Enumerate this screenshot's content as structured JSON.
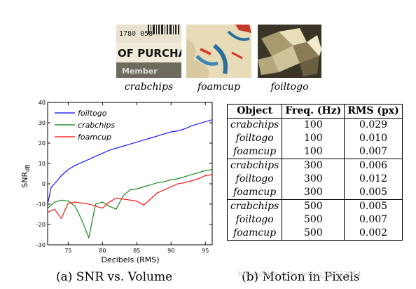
{
  "photos": [
    {
      "label": "crabchips",
      "printed_text": [
        "1780 058",
        "OF PURCHAS",
        "Member"
      ]
    },
    {
      "label": "foamcup"
    },
    {
      "label": "foiltogo"
    }
  ],
  "chart_data": {
    "type": "line",
    "xlabel": "Decibels (RMS)",
    "ylabel": "SNR",
    "ylabel_sub": "dB",
    "xlim": [
      72,
      96
    ],
    "ylim": [
      -30,
      40
    ],
    "xticks": [
      "75",
      "80",
      "85",
      "90",
      "95"
    ],
    "yticks": [
      "40",
      "30",
      "20",
      "10",
      "0",
      "-10",
      "-20",
      "-30"
    ],
    "legend_position": "top-left",
    "series": [
      {
        "name": "foiltogo",
        "color": "#0000ff",
        "x": [
          72,
          72.5,
          73,
          73.5,
          74,
          74.5,
          75,
          76,
          77,
          78,
          79,
          80,
          81,
          82,
          83,
          84,
          85,
          86,
          87,
          88,
          89,
          90,
          91,
          92,
          93,
          94,
          95,
          96
        ],
        "y": [
          -10,
          -2,
          0,
          2,
          4,
          5.5,
          7,
          9,
          10.5,
          12,
          13.5,
          15,
          16.5,
          17.5,
          18.5,
          19.5,
          20.5,
          21.5,
          22.5,
          23.5,
          24.5,
          25.5,
          26,
          27,
          28.5,
          29.5,
          30.5,
          31.5
        ]
      },
      {
        "name": "crabchips",
        "color": "#008000",
        "x": [
          72,
          73,
          74,
          75,
          76,
          77,
          78,
          79,
          80,
          81,
          82,
          83,
          84,
          85,
          86,
          87,
          88,
          89,
          90,
          91,
          92,
          93,
          94,
          95,
          96
        ],
        "y": [
          -12,
          -9,
          -8,
          -8.5,
          -11,
          -18,
          -26.5,
          -10,
          -9,
          -11,
          -12.5,
          -6,
          -3,
          -2.5,
          -1.5,
          -0.5,
          0.5,
          1,
          2,
          2.5,
          3.5,
          4.5,
          5.5,
          6.5,
          7
        ]
      },
      {
        "name": "foamcup",
        "color": "#ff0000",
        "x": [
          72,
          73,
          74,
          75,
          76,
          77,
          78,
          79,
          80,
          81,
          82,
          83,
          84,
          85,
          86,
          87,
          88,
          89,
          90,
          91,
          92,
          93,
          94,
          95,
          96
        ],
        "y": [
          -14,
          -12.5,
          -17,
          -9.5,
          -9,
          -9.5,
          -10,
          -11,
          -12,
          -9,
          -7,
          -7.5,
          -8,
          -8.5,
          -10.5,
          -7.5,
          -4.5,
          -3,
          -1.5,
          0,
          0.5,
          1.5,
          2.5,
          4,
          4.5
        ]
      }
    ]
  },
  "table": {
    "headers": [
      "Object",
      "Freq. (Hz)",
      "RMS (px)"
    ],
    "rows": [
      [
        "crabchips",
        "100",
        "0.029"
      ],
      [
        "foiltogo",
        "100",
        "0.010"
      ],
      [
        "foamcup",
        "100",
        "0.007"
      ],
      [
        "crabchips",
        "300",
        "0.006"
      ],
      [
        "foiltogo",
        "300",
        "0.012"
      ],
      [
        "foamcup",
        "300",
        "0.005"
      ],
      [
        "crabchips",
        "500",
        "0.005"
      ],
      [
        "foiltogo",
        "500",
        "0.007"
      ],
      [
        "foamcup",
        "500",
        "0.002"
      ]
    ]
  },
  "captions": {
    "left": "(a) SNR vs. Volume",
    "right": "(b) Motion in Pixels"
  },
  "watermark": "https://blog.csdn.net/qq_38522954"
}
